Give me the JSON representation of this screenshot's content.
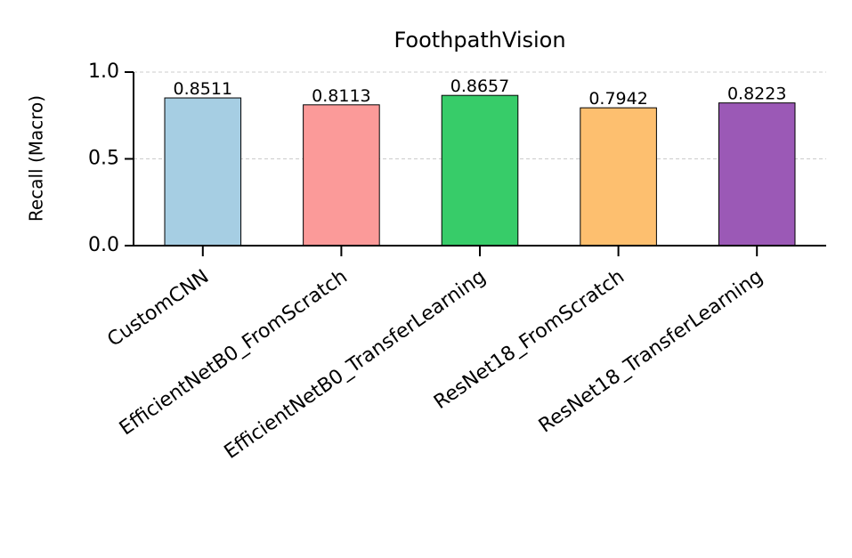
{
  "chart_data": {
    "type": "bar",
    "title": "FoothpathVision",
    "y_label": "Recall (Macro)",
    "categories": [
      "CustomCNN",
      "EfficientNetB0_FromScratch",
      "EfficientNetB0_TransferLearning",
      "ResNet18_FromScratch",
      "ResNet18_TransferLearning"
    ],
    "values": [
      0.8511,
      0.8113,
      0.8657,
      0.7942,
      0.8223
    ],
    "colors": [
      "#a6cee3",
      "#fb9a99",
      "#37cc69",
      "#fdbf6f",
      "#9b59b6"
    ],
    "ylim": [
      0,
      1
    ],
    "yticks": [
      {
        "value": 0,
        "label": "0.0"
      },
      {
        "value": 0.5,
        "label": "0.5"
      },
      {
        "value": 1,
        "label": "1.0"
      }
    ],
    "grid": true
  }
}
